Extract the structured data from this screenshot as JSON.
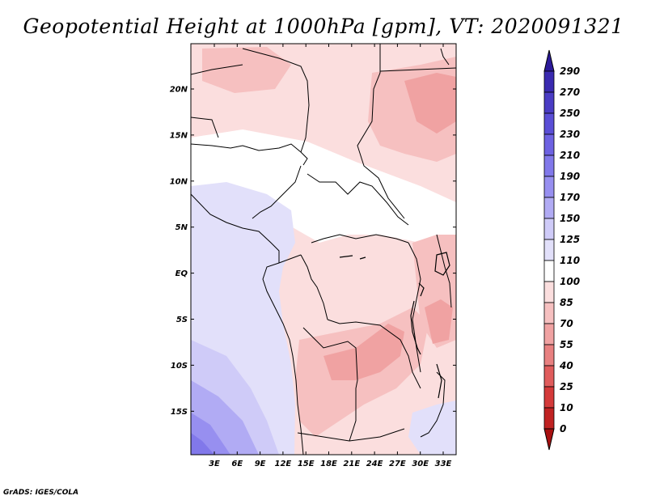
{
  "title": "Geopotential Height at 1000hPa [gpm], VT: 2020091321",
  "footer": "GrADS: IGES/COLA",
  "axes": {
    "lat_labels": [
      "20N",
      "15N",
      "10N",
      "5N",
      "EQ",
      "5S",
      "10S",
      "15S"
    ],
    "lon_labels": [
      "3E",
      "6E",
      "9E",
      "12E",
      "15E",
      "18E",
      "21E",
      "24E",
      "27E",
      "30E",
      "33E"
    ]
  },
  "colorbar": {
    "levels": [
      "290",
      "270",
      "250",
      "230",
      "210",
      "190",
      "170",
      "150",
      "125",
      "110",
      "100",
      "85",
      "70",
      "55",
      "40",
      "25",
      "10",
      "0"
    ],
    "colors": [
      "#2c1a9a",
      "#3a2ab0",
      "#4a3cc4",
      "#5a4ed6",
      "#6d62e2",
      "#8178ea",
      "#978ff0",
      "#b1abf4",
      "#cfcbf8",
      "#e2e0fa",
      "#ffffff",
      "#fbdede",
      "#f6c0c0",
      "#f0a2a2",
      "#e88080",
      "#e05c5c",
      "#d43a3a",
      "#c02222",
      "#a81010"
    ]
  },
  "map": {
    "region": "Central Africa",
    "background_color": "#fbdede"
  }
}
